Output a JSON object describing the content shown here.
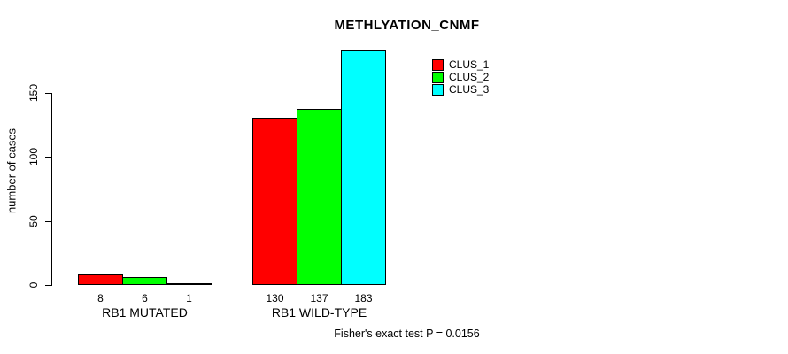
{
  "chart_data": {
    "type": "bar",
    "title": "METHLYATION_CNMF",
    "ylabel": "number of cases",
    "xlabel": "",
    "categories": [
      "RB1 MUTATED",
      "RB1 WILD-TYPE"
    ],
    "series": [
      {
        "name": "CLUS_1",
        "color": "#ff0000",
        "values": [
          8,
          130
        ]
      },
      {
        "name": "CLUS_2",
        "color": "#00ff00",
        "values": [
          6,
          137
        ]
      },
      {
        "name": "CLUS_3",
        "color": "#00ffff",
        "values": [
          1,
          183
        ]
      }
    ],
    "yticks": [
      0,
      50,
      100,
      150
    ],
    "ylim": [
      0,
      183
    ],
    "bar_border_color": "#000000",
    "value_labels_shown": true,
    "legend_position": "top-right-inside",
    "grid": false,
    "annotation": "Fisher's exact test P = 0.0156",
    "background": "#ffffff",
    "text_color": "#000000"
  }
}
